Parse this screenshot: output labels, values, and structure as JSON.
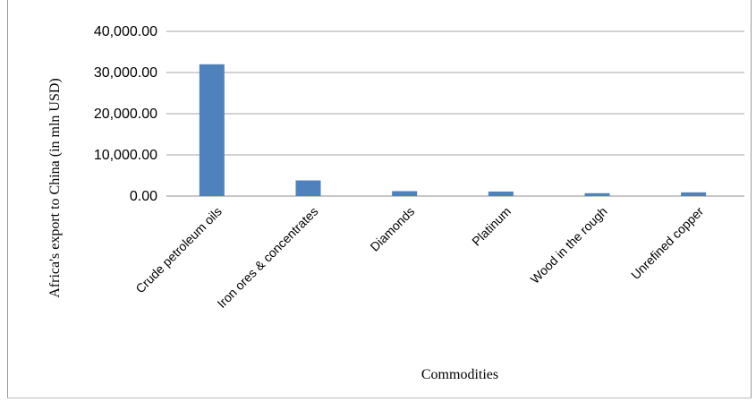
{
  "chart_data": {
    "type": "bar",
    "title": "",
    "xlabel": "Commodities",
    "ylabel": "Africa's export to China (in mln USD)",
    "categories": [
      "Crude petroleum oils",
      "Iron ores & concentrates",
      "Diamonds",
      "Platinum",
      "Wood in the rough",
      "Unrefined copper"
    ],
    "values": [
      32000,
      3800,
      1200,
      1100,
      700,
      900
    ],
    "ylim": [
      0,
      40000
    ],
    "yticks": [
      0,
      10000,
      20000,
      30000,
      40000
    ],
    "ytick_labels": [
      "0.00",
      "10,000.00",
      "20,000.00",
      "30,000.00",
      "40,000.00"
    ],
    "grid": true,
    "bar_color": "#4f81bd"
  }
}
